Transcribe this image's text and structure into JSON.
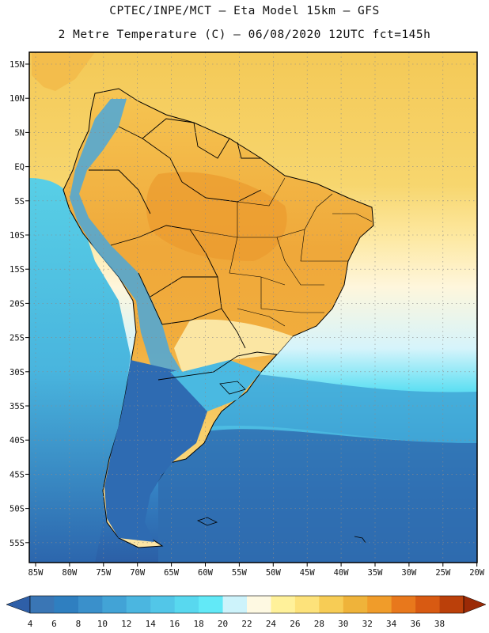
{
  "header": {
    "line1": "CPTEC/INPE/MCT –  Eta Model 15km – GFS",
    "line2": "2 Metre Temperature (C) – 06/08/2020 12UTC fct=145h"
  },
  "map": {
    "lat_labels": [
      "15N",
      "10N",
      "5N",
      "EQ",
      "5S",
      "10S",
      "15S",
      "20S",
      "25S",
      "30S",
      "35S",
      "40S",
      "45S",
      "50S",
      "55S"
    ],
    "lon_labels": [
      "85W",
      "80W",
      "75W",
      "70W",
      "65W",
      "60W",
      "55W",
      "50W",
      "45W",
      "40W",
      "35W",
      "30W",
      "25W",
      "20W"
    ],
    "lat_range": [
      15,
      -57
    ],
    "lon_range": [
      -86,
      -20
    ],
    "gridlines": "dotted"
  },
  "colorbar": {
    "labels": [
      "4",
      "6",
      "8",
      "10",
      "12",
      "14",
      "16",
      "18",
      "20",
      "22",
      "24",
      "26",
      "28",
      "30",
      "32",
      "34",
      "36",
      "38"
    ],
    "colors": [
      "#3a76b5",
      "#2f7fc0",
      "#3a90cb",
      "#42a3d6",
      "#4bb6e0",
      "#52c6e8",
      "#58d8ef",
      "#62e9f7",
      "#cdf3fb",
      "#fef9e2",
      "#fff19a",
      "#fde27a",
      "#f7cc55",
      "#efb33a",
      "#f09c2a",
      "#e8781c",
      "#d85a12",
      "#bb400a"
    ],
    "under_color": "#2e5fa8",
    "over_color": "#9b2a06"
  },
  "colors": {
    "ocean_cold": "#2b61a6",
    "ocean_mid": "#3ea9d6",
    "ocean_warm": "#55d2e6",
    "tropical_sea": "#f5d26a",
    "land_hot": "#f0ad3a",
    "land_warm": "#f7c75a",
    "andes": "#3b8ccd",
    "patagonia": "#2d6bb3",
    "border": "#000000"
  }
}
